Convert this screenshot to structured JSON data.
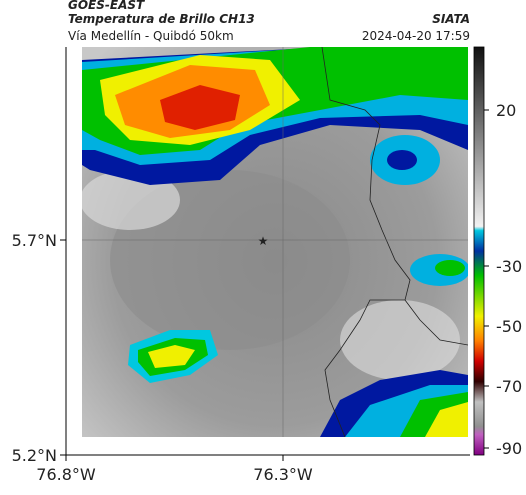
{
  "header": {
    "source": "GOES-EAST",
    "product": "Temperatura de Brillo CH13",
    "route": "Vía Medellín - Quibdó 50km",
    "agency": "SIATA",
    "timestamp": "2024-04-20 17:59"
  },
  "axes": {
    "latitude_labels": [
      "5.7°N",
      "5.2°N"
    ],
    "longitude_labels": [
      "76.8°W",
      "76.3°W"
    ]
  },
  "colorbar": {
    "ticks": [
      20,
      -30,
      -50,
      -70,
      -90
    ]
  }
}
